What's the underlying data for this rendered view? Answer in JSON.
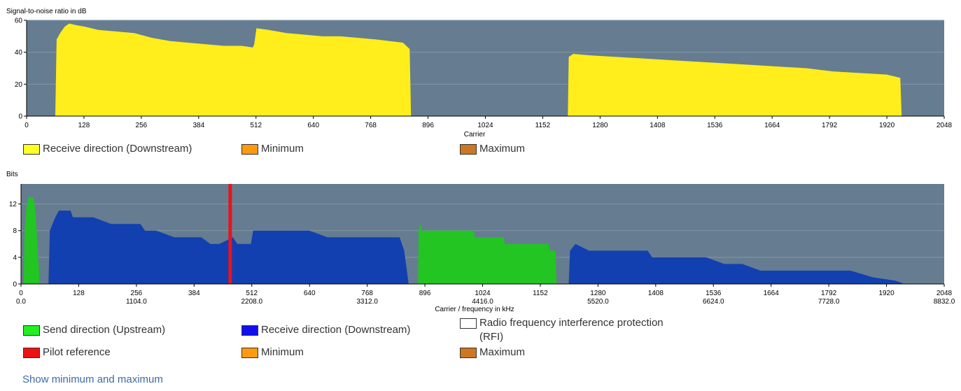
{
  "colors": {
    "plot_bg": "#667c90",
    "grid": "#8296a6",
    "snr_fill": "#ffed1c",
    "upstream": "#22c522",
    "downstream": "#1240b0",
    "pilot": "#e8141c",
    "legend_yellow": "#ffff22",
    "legend_green": "#22ee22",
    "legend_blue": "#1010ee",
    "legend_red": "#ee1111",
    "legend_minimum": "#ff9911",
    "legend_maximum": "#cc7722",
    "legend_rfi": "#ffffff",
    "link": "#3d6aa6"
  },
  "chart_data": [
    {
      "type": "area",
      "title": "Signal-to-noise ratio in dB",
      "xlabel": "Carrier",
      "ylabel": "Signal-to-noise ratio in dB",
      "xlim": [
        0,
        2048
      ],
      "ylim": [
        0,
        60
      ],
      "x_ticks": [
        0,
        128,
        256,
        384,
        512,
        640,
        768,
        896,
        1024,
        1152,
        1280,
        1408,
        1536,
        1664,
        1792,
        1920,
        2048
      ],
      "y_ticks": [
        0,
        20,
        40,
        60
      ],
      "grid": true,
      "series": [
        {
          "name": "Receive direction (Downstream)",
          "color": "#ffed1c",
          "points": [
            [
              64,
              0
            ],
            [
              67,
              48
            ],
            [
              75,
              52
            ],
            [
              85,
              56
            ],
            [
              95,
              58
            ],
            [
              110,
              57
            ],
            [
              130,
              56
            ],
            [
              160,
              54
            ],
            [
              200,
              53
            ],
            [
              240,
              52
            ],
            [
              280,
              49
            ],
            [
              320,
              47
            ],
            [
              360,
              46
            ],
            [
              400,
              45
            ],
            [
              440,
              44
            ],
            [
              480,
              44
            ],
            [
              505,
              43
            ],
            [
              508,
              45
            ],
            [
              513,
              55
            ],
            [
              540,
              54
            ],
            [
              580,
              52
            ],
            [
              620,
              51
            ],
            [
              660,
              50
            ],
            [
              700,
              50
            ],
            [
              740,
              49
            ],
            [
              780,
              48
            ],
            [
              840,
              46
            ],
            [
              855,
              42
            ],
            [
              858,
              0
            ],
            [
              1208,
              0
            ],
            [
              1210,
              37
            ],
            [
              1220,
              39
            ],
            [
              1260,
              38
            ],
            [
              1320,
              37
            ],
            [
              1380,
              36
            ],
            [
              1440,
              35
            ],
            [
              1500,
              34
            ],
            [
              1560,
              33
            ],
            [
              1620,
              32
            ],
            [
              1680,
              31
            ],
            [
              1740,
              30
            ],
            [
              1800,
              28
            ],
            [
              1860,
              27
            ],
            [
              1920,
              26
            ],
            [
              1950,
              24
            ],
            [
              1953,
              0
            ]
          ]
        }
      ],
      "legend": [
        "Receive direction (Downstream)",
        "Minimum",
        "Maximum"
      ],
      "legend_placement": "bottom"
    },
    {
      "type": "area",
      "title": "Bits",
      "xlabel": "Carrier / frequency in kHz",
      "ylabel": "Bits",
      "xlim": [
        0,
        2048
      ],
      "ylim": [
        0,
        15
      ],
      "x_ticks": [
        0,
        128,
        256,
        384,
        512,
        640,
        768,
        896,
        1024,
        1152,
        1280,
        1408,
        1536,
        1664,
        1792,
        1920,
        2048
      ],
      "x_ticks_khz": [
        "0.0",
        "1104.0",
        "2208.0",
        "3312.0",
        "4416.0",
        "5520.0",
        "6624.0",
        "7728.0",
        "8832.0"
      ],
      "y_ticks": [
        0,
        4,
        8,
        12
      ],
      "grid": true,
      "series": [
        {
          "name": "Send direction (Upstream)",
          "color": "#22c522",
          "points": [
            [
              6,
              0
            ],
            [
              8,
              8
            ],
            [
              10,
              10
            ],
            [
              13,
              12
            ],
            [
              17,
              13
            ],
            [
              28,
              13
            ],
            [
              30,
              12
            ],
            [
              33,
              10
            ],
            [
              37,
              5
            ],
            [
              40,
              2
            ],
            [
              41,
              0
            ],
            [
              881,
              0
            ],
            [
              882,
              8
            ],
            [
              887,
              9
            ],
            [
              890,
              8
            ],
            [
              1004,
              8
            ],
            [
              1007,
              7
            ],
            [
              1070,
              7
            ],
            [
              1074,
              6
            ],
            [
              1170,
              6
            ],
            [
              1174,
              5
            ],
            [
              1186,
              5
            ],
            [
              1188,
              0
            ]
          ]
        },
        {
          "name": "Receive direction (Downstream)",
          "color": "#1240b0",
          "points": [
            [
              61,
              0
            ],
            [
              64,
              8
            ],
            [
              70,
              9
            ],
            [
              76,
              10
            ],
            [
              84,
              11
            ],
            [
              110,
              11
            ],
            [
              115,
              10
            ],
            [
              160,
              10
            ],
            [
              180,
              9.5
            ],
            [
              200,
              9
            ],
            [
              220,
              9
            ],
            [
              265,
              9
            ],
            [
              275,
              8
            ],
            [
              300,
              8
            ],
            [
              340,
              7
            ],
            [
              360,
              7
            ],
            [
              384,
              7
            ],
            [
              400,
              7
            ],
            [
              420,
              6
            ],
            [
              440,
              6
            ],
            [
              470,
              7
            ],
            [
              480,
              6
            ],
            [
              510,
              6
            ],
            [
              515,
              8
            ],
            [
              560,
              8
            ],
            [
              600,
              8
            ],
            [
              620,
              8
            ],
            [
              640,
              8
            ],
            [
              680,
              7
            ],
            [
              720,
              7
            ],
            [
              770,
              7
            ],
            [
              800,
              7
            ],
            [
              840,
              7
            ],
            [
              850,
              5
            ],
            [
              860,
              0
            ],
            [
              1215,
              0
            ],
            [
              1218,
              5
            ],
            [
              1230,
              6
            ],
            [
              1260,
              5
            ],
            [
              1320,
              5
            ],
            [
              1390,
              5
            ],
            [
              1400,
              4
            ],
            [
              1440,
              4
            ],
            [
              1480,
              4
            ],
            [
              1520,
              4
            ],
            [
              1560,
              3
            ],
            [
              1600,
              3
            ],
            [
              1640,
              2
            ],
            [
              1700,
              2
            ],
            [
              1760,
              2
            ],
            [
              1840,
              2
            ],
            [
              1890,
              1
            ],
            [
              1940,
              0.5
            ],
            [
              1960,
              0
            ]
          ]
        },
        {
          "name": "Pilot reference",
          "color": "#e8141c",
          "x": 464,
          "value": 15
        }
      ],
      "legend": [
        "Send direction (Upstream)",
        "Receive direction (Downstream)",
        "Radio frequency interference protection (RFI)",
        "Pilot reference",
        "Minimum",
        "Maximum"
      ],
      "legend_placement": "bottom"
    }
  ],
  "snr_legend": {
    "receive": "Receive direction (Downstream)",
    "minimum": "Minimum",
    "maximum": "Maximum"
  },
  "bits_legend": {
    "send": "Send direction (Upstream)",
    "receive": "Receive direction (Downstream)",
    "rfi": "Radio frequency interference protection (RFI)",
    "pilot": "Pilot reference",
    "minimum": "Minimum",
    "maximum": "Maximum"
  },
  "show_link": "Show minimum and maximum"
}
